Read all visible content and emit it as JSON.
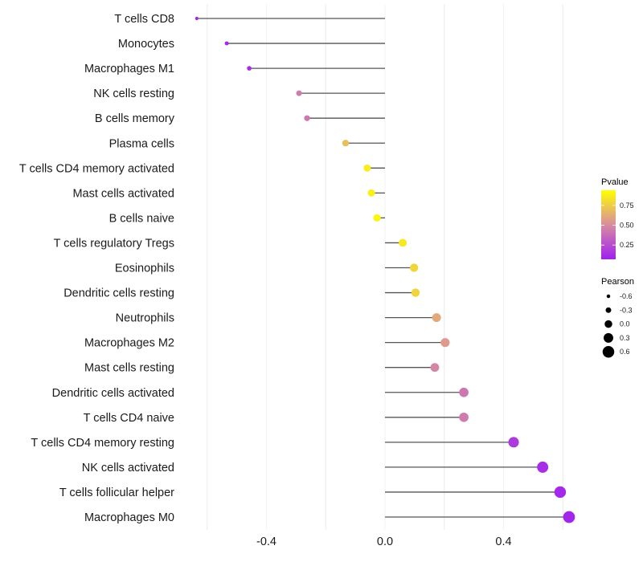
{
  "chart_data": {
    "type": "lollipop",
    "title": "",
    "xlabel": "",
    "ylabel": "",
    "xlim": [
      -0.68,
      0.68
    ],
    "xticks": [
      -0.4,
      0.0,
      0.4
    ],
    "xtick_labels": [
      "-0.4",
      "0.0",
      "0.4"
    ],
    "grid": true,
    "categories": [
      "T cells CD8",
      "Monocytes",
      "Macrophages M1",
      "NK cells resting",
      "B cells memory",
      "Plasma cells",
      "T cells CD4 memory activated",
      "Mast cells activated",
      "B cells naive",
      "T cells regulatory  Tregs ",
      "Eosinophils",
      "Dendritic cells resting",
      "Neutrophils",
      "Macrophages M2",
      "Mast cells resting",
      "Dendritic cells activated",
      "T cells CD4 naive",
      "T cells CD4 memory resting",
      "NK cells activated",
      "T cells follicular helper",
      "Macrophages M0"
    ],
    "pearson": [
      -0.635,
      -0.534,
      -0.458,
      -0.29,
      -0.263,
      -0.133,
      -0.06,
      -0.046,
      -0.027,
      0.06,
      0.098,
      0.103,
      0.174,
      0.203,
      0.168,
      0.266,
      0.266,
      0.434,
      0.532,
      0.591,
      0.621
    ],
    "pvalue": [
      0.02,
      0.03,
      0.05,
      0.42,
      0.4,
      0.72,
      0.92,
      0.93,
      0.96,
      0.9,
      0.82,
      0.81,
      0.62,
      0.56,
      0.47,
      0.4,
      0.42,
      0.12,
      0.06,
      0.04,
      0.02
    ],
    "legend_color": {
      "title": "Pvalue",
      "ticks": [
        0.25,
        0.5,
        0.75
      ],
      "tick_labels": [
        "0.25",
        "0.50",
        "0.75"
      ],
      "range": [
        0.07,
        0.94
      ],
      "low": "#a020f0",
      "mid": "#d88ca0",
      "high": "#ffff00",
      "placement": "right"
    },
    "legend_size": {
      "title": "Pearson",
      "values": [
        -0.6,
        -0.3,
        0.0,
        0.3,
        0.6
      ],
      "labels": [
        "-0.6",
        "-0.3",
        "0.0",
        "0.3",
        "0.6"
      ],
      "placement": "right"
    }
  }
}
